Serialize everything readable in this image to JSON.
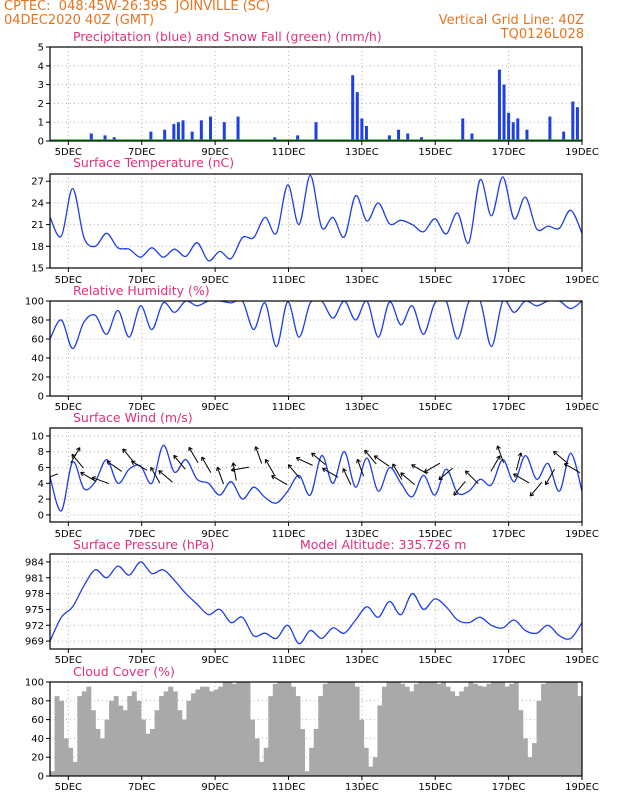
{
  "header": {
    "line1_left": "CPTEC:  048:45W-26:39S  JOINVILLE (SC)",
    "line2_left": "04DEC2020 40Z (GMT)",
    "line2_right": "Vertical Grid Line: 40Z",
    "line3_right": "TQ0126L028"
  },
  "colors": {
    "title": "#e0307c",
    "header": "#e8731e",
    "line": "#1f3fe6",
    "cloud": "#a9a9a9",
    "snow": "#18a018"
  },
  "x_ticks": [
    "5DEC",
    "7DEC",
    "9DEC",
    "11DEC",
    "13DEC",
    "15DEC",
    "17DEC",
    "19DEC"
  ],
  "panels": {
    "precip": {
      "title": "Precipitation (blue) and Snow Fall (green) (mm/h)",
      "yticks": [
        "0",
        "1",
        "2",
        "3",
        "4",
        "5"
      ]
    },
    "temp": {
      "title": "Surface Temperature (nC)",
      "yticks": [
        "15",
        "18",
        "21",
        "24",
        "27"
      ]
    },
    "rh": {
      "title": "Relative Humidity (%)",
      "yticks": [
        "0",
        "20",
        "40",
        "60",
        "80",
        "100"
      ]
    },
    "wind": {
      "title": "Surface Wind (m/s)",
      "yticks": [
        "0",
        "2",
        "4",
        "6",
        "8",
        "10"
      ]
    },
    "pressure": {
      "title": "Surface Pressure (hPa)",
      "subtitle": "Model Altitude: 335.726 m",
      "yticks": [
        "969",
        "972",
        "975",
        "978",
        "981",
        "984"
      ]
    },
    "cloud": {
      "title": "Cloud Cover (%)",
      "yticks": [
        "0",
        "20",
        "40",
        "60",
        "80",
        "100"
      ]
    }
  },
  "chart_data": [
    {
      "type": "bar",
      "title": "Precipitation (blue) and Snow Fall (green) (mm/h)",
      "x_start": "2020-12-04T12:00Z",
      "x_end": "2020-12-19T00:00Z",
      "ylim": [
        0,
        5
      ],
      "series": [
        {
          "name": "Precipitation",
          "color": "#1f3fe6",
          "x": [
            "2020-12-05T15:00Z",
            "2020-12-06T00:00Z",
            "2020-12-06T06:00Z",
            "2020-12-07T06:00Z",
            "2020-12-07T15:00Z",
            "2020-12-07T21:00Z",
            "2020-12-08T00:00Z",
            "2020-12-08T03:00Z",
            "2020-12-08T09:00Z",
            "2020-12-08T15:00Z",
            "2020-12-08T21:00Z",
            "2020-12-09T06:00Z",
            "2020-12-09T15:00Z",
            "2020-12-10T15:00Z",
            "2020-12-11T06:00Z",
            "2020-12-11T18:00Z",
            "2020-12-12T18:00Z",
            "2020-12-12T21:00Z",
            "2020-12-13T00:00Z",
            "2020-12-13T03:00Z",
            "2020-12-13T18:00Z",
            "2020-12-14T00:00Z",
            "2020-12-14T06:00Z",
            "2020-12-14T15:00Z",
            "2020-12-15T18:00Z",
            "2020-12-16T00:00Z",
            "2020-12-16T18:00Z",
            "2020-12-16T21:00Z",
            "2020-12-17T00:00Z",
            "2020-12-17T03:00Z",
            "2020-12-17T06:00Z",
            "2020-12-17T12:00Z",
            "2020-12-18T03:00Z",
            "2020-12-18T12:00Z",
            "2020-12-18T18:00Z",
            "2020-12-18T21:00Z"
          ],
          "values": [
            0.4,
            0.3,
            0.2,
            0.5,
            0.6,
            0.9,
            1.0,
            1.1,
            0.5,
            1.1,
            1.3,
            1.0,
            1.3,
            0.2,
            0.3,
            1.0,
            3.5,
            2.6,
            1.2,
            0.8,
            0.3,
            0.6,
            0.4,
            0.2,
            1.2,
            0.4,
            3.8,
            3.0,
            1.5,
            1.0,
            1.2,
            0.6,
            1.3,
            0.5,
            2.1,
            1.8
          ]
        },
        {
          "name": "Snow Fall",
          "color": "#18a018",
          "values": [
            0
          ]
        }
      ]
    },
    {
      "type": "line",
      "title": "Surface Temperature (nC)",
      "ylim": [
        15,
        28
      ],
      "x_start": "2020-12-04T12:00Z",
      "x_end": "2020-12-19T00:00Z",
      "x_step_hours": 6,
      "series": [
        {
          "values": [
            22.0,
            19.4,
            26.0,
            19.2,
            18.0,
            19.8,
            17.8,
            17.6,
            16.5,
            17.8,
            16.5,
            17.6,
            16.6,
            18.5,
            16.0,
            17.3,
            16.3,
            19.2,
            19.2,
            22.0,
            19.8,
            26.5,
            21.0,
            27.8,
            20.6,
            22.0,
            19.3,
            25.0,
            21.5,
            24.0,
            21.1,
            21.6,
            21.0,
            20.0,
            21.8,
            19.7,
            22.6,
            18.5,
            27.2,
            22.2,
            27.6,
            21.8,
            24.8,
            20.4,
            20.8,
            20.5,
            23.0,
            19.8
          ]
        }
      ]
    },
    {
      "type": "line",
      "title": "Relative Humidity (%)",
      "ylim": [
        0,
        100
      ],
      "x_start": "2020-12-04T12:00Z",
      "x_end": "2020-12-19T00:00Z",
      "x_step_hours": 6,
      "series": [
        {
          "values": [
            60,
            80,
            50,
            78,
            85,
            65,
            90,
            62,
            95,
            70,
            98,
            88,
            100,
            95,
            100,
            100,
            98,
            100,
            70,
            98,
            52,
            99,
            62,
            98,
            100,
            82,
            100,
            80,
            100,
            62,
            99,
            75,
            95,
            65,
            98,
            100,
            60,
            99,
            100,
            52,
            100,
            88,
            100,
            95,
            100,
            100,
            92,
            100
          ]
        }
      ]
    },
    {
      "type": "line",
      "title": "Surface Wind (m/s)",
      "ylim": [
        0,
        10
      ],
      "x_start": "2020-12-04T12:00Z",
      "x_end": "2020-12-19T00:00Z",
      "x_step_hours": 6,
      "series": [
        {
          "values": [
            4.8,
            0.5,
            6.7,
            3.3,
            4.2,
            7.0,
            4.0,
            5.8,
            6.2,
            4.0,
            8.8,
            5.4,
            7.0,
            4.5,
            4.0,
            2.5,
            4.2,
            2.0,
            3.5,
            2.2,
            1.5,
            3.0,
            5.0,
            2.5,
            7.5,
            4.0,
            8.0,
            3.5,
            7.2,
            3.0,
            6.0,
            4.0,
            2.3,
            5.0,
            2.5,
            5.8,
            2.8,
            3.0,
            4.5,
            3.8,
            7.0,
            4.2,
            7.5,
            4.5,
            6.5,
            3.0,
            7.8,
            3.0
          ]
        }
      ]
    },
    {
      "type": "line",
      "title": "Surface Pressure (hPa)",
      "annotation": "Model Altitude: 335.726 m",
      "ylim": [
        967.5,
        985.5
      ],
      "x_start": "2020-12-04T12:00Z",
      "x_end": "2020-12-19T00:00Z",
      "x_step_hours": 6,
      "series": [
        {
          "values": [
            969.0,
            973.5,
            975.5,
            979.5,
            982.5,
            981.0,
            983.2,
            981.5,
            984.0,
            981.8,
            982.5,
            980.5,
            978.0,
            976.0,
            974.0,
            975.0,
            972.5,
            973.5,
            970.0,
            970.5,
            969.5,
            972.0,
            968.5,
            971.0,
            969.5,
            971.5,
            970.5,
            973.0,
            975.5,
            973.5,
            976.5,
            974.0,
            978.0,
            975.0,
            977.0,
            975.5,
            973.0,
            972.5,
            973.5,
            972.0,
            971.5,
            973.0,
            971.0,
            970.5,
            972.0,
            970.0,
            969.5,
            972.5
          ]
        }
      ]
    },
    {
      "type": "bar",
      "title": "Cloud Cover (%)",
      "ylim": [
        0,
        100
      ],
      "x_start": "2020-12-04T12:00Z",
      "x_end": "2020-12-19T00:00Z",
      "x_step_hours": 3,
      "series": [
        {
          "color": "#a9a9a9",
          "values": [
            5,
            85,
            80,
            40,
            30,
            15,
            85,
            90,
            95,
            70,
            50,
            40,
            60,
            80,
            85,
            75,
            70,
            85,
            90,
            80,
            60,
            45,
            50,
            70,
            85,
            90,
            95,
            90,
            70,
            60,
            80,
            88,
            92,
            95,
            95,
            90,
            92,
            95,
            100,
            100,
            98,
            100,
            100,
            100,
            60,
            40,
            15,
            30,
            85,
            98,
            100,
            100,
            100,
            95,
            85,
            50,
            5,
            30,
            50,
            85,
            98,
            100,
            100,
            100,
            100,
            100,
            100,
            95,
            60,
            30,
            10,
            20,
            75,
            95,
            100,
            100,
            100,
            98,
            95,
            90,
            98,
            100,
            100,
            100,
            100,
            98,
            100,
            95,
            90,
            85,
            90,
            95,
            100,
            98,
            96,
            95,
            98,
            100,
            100,
            100,
            95,
            98,
            100,
            70,
            40,
            20,
            35,
            80,
            98,
            100,
            100,
            100,
            100,
            100,
            100,
            100,
            85
          ]
        }
      ]
    }
  ]
}
